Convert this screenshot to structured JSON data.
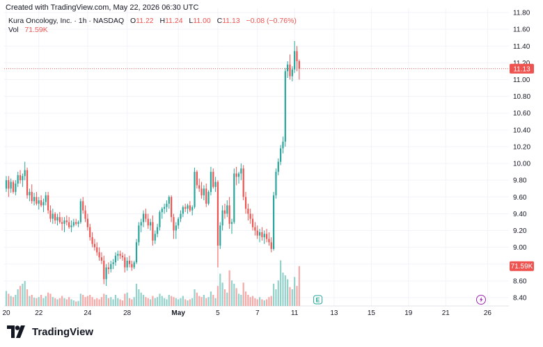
{
  "header": {
    "created_text": "Created with TradingView.com, May 22, 2026 06:30 UTC",
    "symbol_line": "Kura Oncology, Inc. · 1h · NASDAQ",
    "o_label": "O",
    "o_value": "11.22",
    "h_label": "H",
    "h_value": "11.24",
    "l_label": "L",
    "l_value": "11.00",
    "c_label": "C",
    "c_value": "11.13",
    "change": "−0.08 (−0.76%)",
    "vol_label": "Vol",
    "vol_value": "71.59K"
  },
  "branding": {
    "logo_text": "TradingView",
    "logo_icon": "tradingview-logo-icon"
  },
  "colors": {
    "up": "#26a69a",
    "down": "#ef5350",
    "up_volume": "#92d2cb",
    "down_volume": "#f5a8a6",
    "grid": "#f0f3fa",
    "text": "#131722"
  },
  "markers": {
    "earnings_icon": "earnings-icon",
    "earnings_label": "E",
    "flash_icon": "lightning-icon"
  },
  "chart_data": {
    "type": "candlestick",
    "interval": "1h",
    "y_ticks": [
      "8.40",
      "8.60",
      "8.80",
      "9.00",
      "9.20",
      "9.40",
      "9.60",
      "9.80",
      "10.00",
      "10.20",
      "10.40",
      "10.60",
      "10.80",
      "11.00",
      "11.20",
      "11.40",
      "11.60",
      "11.80"
    ],
    "ylim": [
      8.3,
      11.85
    ],
    "x_ticks": [
      {
        "label": "20",
        "i": 0
      },
      {
        "label": "22",
        "i": 14
      },
      {
        "label": "24",
        "i": 35
      },
      {
        "label": "28",
        "i": 52
      },
      {
        "label": "May",
        "i": 74,
        "bold": true
      },
      {
        "label": "5",
        "i": 91
      },
      {
        "label": "7",
        "i": 108
      },
      {
        "label": "11",
        "i": 124
      },
      {
        "label": "13",
        "i": 141
      },
      {
        "label": "15",
        "i": 157
      },
      {
        "label": "19",
        "i": 173
      },
      {
        "label": "21",
        "i": 189
      },
      {
        "label": "26",
        "i": 207
      }
    ],
    "last_price_label": "11.13",
    "last_price": 11.13,
    "last_volume_label": "71.59K",
    "last_volume": 71590,
    "volume_max": 100000,
    "candles": [
      [
        9.7,
        9.85,
        9.66,
        9.8,
        27000
      ],
      [
        9.8,
        9.85,
        9.6,
        9.7,
        22000
      ],
      [
        9.7,
        9.82,
        9.65,
        9.78,
        18000
      ],
      [
        9.78,
        9.8,
        9.64,
        9.66,
        16000
      ],
      [
        9.66,
        9.8,
        9.62,
        9.76,
        20000
      ],
      [
        9.76,
        9.9,
        9.72,
        9.86,
        30000
      ],
      [
        9.86,
        9.92,
        9.76,
        9.8,
        36000
      ],
      [
        9.8,
        9.88,
        9.72,
        9.85,
        40000
      ],
      [
        9.85,
        10.02,
        9.8,
        9.92,
        45000
      ],
      [
        9.92,
        9.95,
        9.58,
        9.62,
        30000
      ],
      [
        9.62,
        9.7,
        9.55,
        9.66,
        18000
      ],
      [
        9.66,
        9.75,
        9.52,
        9.55,
        20000
      ],
      [
        9.55,
        9.65,
        9.5,
        9.6,
        15000
      ],
      [
        9.6,
        9.66,
        9.5,
        9.52,
        14000
      ],
      [
        9.52,
        9.6,
        9.45,
        9.56,
        16000
      ],
      [
        9.56,
        9.62,
        9.48,
        9.5,
        20000
      ],
      [
        9.5,
        9.58,
        9.42,
        9.54,
        14000
      ],
      [
        9.54,
        9.66,
        9.5,
        9.62,
        18000
      ],
      [
        9.62,
        9.66,
        9.4,
        9.44,
        24000
      ],
      [
        9.44,
        9.5,
        9.3,
        9.34,
        22000
      ],
      [
        9.34,
        9.46,
        9.28,
        9.4,
        16000
      ],
      [
        9.4,
        9.42,
        9.28,
        9.32,
        14000
      ],
      [
        9.32,
        9.4,
        9.26,
        9.36,
        12000
      ],
      [
        9.36,
        9.42,
        9.28,
        9.3,
        14000
      ],
      [
        9.3,
        9.36,
        9.2,
        9.28,
        18000
      ],
      [
        9.28,
        9.36,
        9.18,
        9.32,
        14000
      ],
      [
        9.32,
        9.38,
        9.26,
        9.3,
        12000
      ],
      [
        9.3,
        9.36,
        9.22,
        9.24,
        16000
      ],
      [
        9.24,
        9.32,
        9.18,
        9.26,
        12000
      ],
      [
        9.26,
        9.34,
        9.24,
        9.3,
        10000
      ],
      [
        9.3,
        9.34,
        9.26,
        9.28,
        8000
      ],
      [
        9.28,
        9.32,
        9.24,
        9.3,
        9000
      ],
      [
        9.3,
        9.58,
        9.28,
        9.55,
        22000
      ],
      [
        9.55,
        9.6,
        9.4,
        9.44,
        20000
      ],
      [
        9.44,
        9.5,
        9.3,
        9.34,
        16000
      ],
      [
        9.34,
        9.4,
        9.2,
        9.24,
        18000
      ],
      [
        9.24,
        9.28,
        9.08,
        9.12,
        20000
      ],
      [
        9.12,
        9.18,
        9.0,
        9.04,
        16000
      ],
      [
        9.04,
        9.1,
        8.96,
        9.0,
        12000
      ],
      [
        9.0,
        9.06,
        8.9,
        8.94,
        14000
      ],
      [
        8.94,
        9.0,
        8.84,
        8.88,
        12000
      ],
      [
        8.88,
        8.94,
        8.8,
        8.84,
        16000
      ],
      [
        8.84,
        8.9,
        8.56,
        8.62,
        22000
      ],
      [
        8.62,
        8.8,
        8.54,
        8.76,
        20000
      ],
      [
        8.76,
        8.82,
        8.68,
        8.74,
        14000
      ],
      [
        8.74,
        8.84,
        8.7,
        8.8,
        16000
      ],
      [
        8.8,
        8.86,
        8.74,
        8.82,
        12000
      ],
      [
        8.82,
        8.94,
        8.78,
        8.9,
        20000
      ],
      [
        8.9,
        8.96,
        8.84,
        8.92,
        14000
      ],
      [
        8.92,
        8.96,
        8.86,
        8.9,
        12000
      ],
      [
        8.9,
        8.94,
        8.84,
        8.88,
        10000
      ],
      [
        8.88,
        8.92,
        8.7,
        8.76,
        22000
      ],
      [
        8.76,
        8.88,
        8.72,
        8.84,
        24000
      ],
      [
        8.84,
        8.9,
        8.76,
        8.8,
        14000
      ],
      [
        8.8,
        8.84,
        8.72,
        8.76,
        12000
      ],
      [
        8.76,
        8.84,
        8.74,
        8.82,
        16000
      ],
      [
        8.82,
        9.1,
        8.8,
        9.06,
        40000
      ],
      [
        9.06,
        9.3,
        9.02,
        9.26,
        30000
      ],
      [
        9.26,
        9.34,
        9.18,
        9.3,
        24000
      ],
      [
        9.3,
        9.44,
        9.24,
        9.4,
        20000
      ],
      [
        9.4,
        9.46,
        9.3,
        9.34,
        16000
      ],
      [
        9.34,
        9.4,
        9.22,
        9.26,
        14000
      ],
      [
        9.26,
        9.34,
        9.2,
        9.3,
        12000
      ],
      [
        9.3,
        9.38,
        9.02,
        9.08,
        18000
      ],
      [
        9.08,
        9.2,
        9.04,
        9.16,
        14000
      ],
      [
        9.16,
        9.28,
        9.12,
        9.24,
        16000
      ],
      [
        9.24,
        9.44,
        9.2,
        9.42,
        22000
      ],
      [
        9.42,
        9.48,
        9.34,
        9.46,
        18000
      ],
      [
        9.46,
        9.52,
        9.4,
        9.48,
        14000
      ],
      [
        9.48,
        9.56,
        9.42,
        9.52,
        12000
      ],
      [
        9.52,
        9.62,
        9.46,
        9.6,
        20000
      ],
      [
        9.6,
        9.62,
        9.3,
        9.36,
        18000
      ],
      [
        9.36,
        9.4,
        9.1,
        9.2,
        16000
      ],
      [
        9.2,
        9.3,
        9.1,
        9.26,
        14000
      ],
      [
        9.26,
        9.36,
        9.22,
        9.34,
        12000
      ],
      [
        9.34,
        9.44,
        9.3,
        9.4,
        14000
      ],
      [
        9.4,
        9.5,
        9.36,
        9.48,
        18000
      ],
      [
        9.48,
        9.52,
        9.42,
        9.46,
        12000
      ],
      [
        9.46,
        9.52,
        9.4,
        9.5,
        10000
      ],
      [
        9.5,
        9.55,
        9.42,
        9.44,
        12000
      ],
      [
        9.44,
        9.5,
        9.38,
        9.48,
        14000
      ],
      [
        9.48,
        9.95,
        9.46,
        9.9,
        30000
      ],
      [
        9.9,
        9.92,
        9.7,
        9.74,
        24000
      ],
      [
        9.74,
        9.82,
        9.66,
        9.7,
        18000
      ],
      [
        9.7,
        9.78,
        9.58,
        9.62,
        16000
      ],
      [
        9.62,
        9.74,
        9.56,
        9.7,
        20000
      ],
      [
        9.7,
        9.76,
        9.48,
        9.52,
        14000
      ],
      [
        9.52,
        9.68,
        9.5,
        9.66,
        16000
      ],
      [
        9.66,
        9.96,
        9.62,
        9.9,
        26000
      ],
      [
        9.9,
        9.94,
        9.7,
        9.72,
        20000
      ],
      [
        9.72,
        9.84,
        9.66,
        9.78,
        14000
      ],
      [
        9.78,
        9.8,
        8.76,
        9.02,
        36000
      ],
      [
        9.02,
        9.3,
        8.98,
        9.26,
        58000
      ],
      [
        9.26,
        9.5,
        9.2,
        9.44,
        42000
      ],
      [
        9.44,
        9.52,
        9.34,
        9.4,
        30000
      ],
      [
        9.4,
        9.56,
        9.36,
        9.5,
        24000
      ],
      [
        9.5,
        9.6,
        9.22,
        9.28,
        64000
      ],
      [
        9.28,
        9.34,
        9.16,
        9.3,
        46000
      ],
      [
        9.3,
        9.94,
        9.28,
        9.88,
        40000
      ],
      [
        9.88,
        9.96,
        9.74,
        9.84,
        32000
      ],
      [
        9.84,
        9.9,
        9.76,
        9.88,
        22000
      ],
      [
        9.88,
        10.0,
        9.8,
        9.94,
        20000
      ],
      [
        9.94,
        9.98,
        9.56,
        9.6,
        42000
      ],
      [
        9.6,
        9.66,
        9.4,
        9.46,
        26000
      ],
      [
        9.46,
        9.52,
        9.32,
        9.4,
        20000
      ],
      [
        9.4,
        9.46,
        9.28,
        9.34,
        16000
      ],
      [
        9.34,
        9.4,
        9.2,
        9.24,
        18000
      ],
      [
        9.24,
        9.3,
        9.14,
        9.2,
        14000
      ],
      [
        9.2,
        9.26,
        9.1,
        9.14,
        12000
      ],
      [
        9.14,
        9.22,
        9.06,
        9.18,
        16000
      ],
      [
        9.18,
        9.24,
        9.08,
        9.12,
        12000
      ],
      [
        9.12,
        9.2,
        9.04,
        9.16,
        10000
      ],
      [
        9.16,
        9.22,
        9.06,
        9.1,
        12000
      ],
      [
        9.1,
        9.18,
        9.02,
        9.06,
        16000
      ],
      [
        9.06,
        9.12,
        8.94,
        8.98,
        18000
      ],
      [
        8.98,
        9.66,
        8.96,
        9.62,
        40000
      ],
      [
        9.62,
        9.94,
        9.58,
        9.9,
        30000
      ],
      [
        9.9,
        10.06,
        9.86,
        10.02,
        46000
      ],
      [
        10.02,
        10.22,
        9.98,
        10.18,
        82000
      ],
      [
        10.18,
        10.32,
        10.12,
        10.26,
        60000
      ],
      [
        10.26,
        11.14,
        10.2,
        11.1,
        55000
      ],
      [
        11.1,
        11.22,
        11.02,
        11.18,
        48000
      ],
      [
        11.18,
        11.3,
        11.0,
        11.04,
        34000
      ],
      [
        11.04,
        11.16,
        10.98,
        11.12,
        30000
      ],
      [
        11.12,
        11.46,
        11.08,
        11.34,
        52000
      ],
      [
        11.34,
        11.4,
        11.1,
        11.22,
        36000
      ],
      [
        11.22,
        11.24,
        11.0,
        11.13,
        71590
      ]
    ]
  }
}
